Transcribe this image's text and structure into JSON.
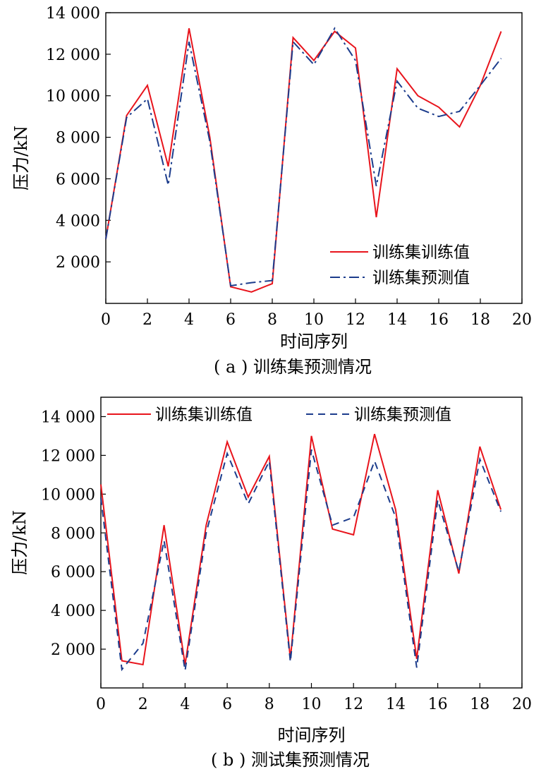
{
  "chart_data": [
    {
      "type": "line",
      "caption": "( a ) 训练集预测情况",
      "xlabel": "时间序列",
      "ylabel": "压力/kN",
      "xlim": [
        0,
        20
      ],
      "ylim": [
        0,
        14000
      ],
      "xticks": [
        "0",
        "2",
        "4",
        "6",
        "8",
        "10",
        "12",
        "14",
        "16",
        "18",
        "20"
      ],
      "yticks": [
        "2 000",
        "4 000",
        "6 000",
        "8 000",
        "10 000",
        "12 000",
        "14 000"
      ],
      "ytick_values": [
        2000,
        4000,
        6000,
        8000,
        10000,
        12000,
        14000
      ],
      "legend_position": "lower-right",
      "x": [
        0,
        1,
        2,
        3,
        4,
        5,
        6,
        7,
        8,
        9,
        10,
        11,
        12,
        13,
        14,
        15,
        16,
        17,
        18,
        19
      ],
      "series": [
        {
          "name": "训练集训练值",
          "color": "#e8141c",
          "style": "solid",
          "values": [
            3100,
            9050,
            10500,
            6600,
            13250,
            8000,
            800,
            550,
            950,
            12800,
            11700,
            13100,
            12300,
            4150,
            11300,
            10000,
            9450,
            8500,
            10500,
            13100
          ]
        },
        {
          "name": "训练集预测值",
          "color": "#1c3c8c",
          "style": "dashdot",
          "values": [
            3100,
            8950,
            9850,
            5700,
            12600,
            7800,
            850,
            1000,
            1100,
            12600,
            11500,
            13250,
            11700,
            5650,
            10700,
            9400,
            9000,
            9250,
            10500,
            11800
          ]
        }
      ]
    },
    {
      "type": "line",
      "caption": "( b ) 测试集预测情况",
      "xlabel": "时间序列",
      "ylabel": "压力/kN",
      "xlim": [
        0,
        20
      ],
      "ylim": [
        0,
        15000
      ],
      "xticks": [
        "0",
        "2",
        "4",
        "6",
        "8",
        "10",
        "12",
        "14",
        "16",
        "18",
        "20"
      ],
      "yticks": [
        "2 000",
        "4 000",
        "6 000",
        "8 000",
        "10 000",
        "12 000",
        "14 000"
      ],
      "ytick_values": [
        2000,
        4000,
        6000,
        8000,
        10000,
        12000,
        14000
      ],
      "legend_position": "top",
      "x": [
        0,
        1,
        2,
        3,
        4,
        5,
        6,
        7,
        8,
        9,
        10,
        11,
        12,
        13,
        14,
        15,
        16,
        17,
        18,
        19
      ],
      "series": [
        {
          "name": "训练集训练值",
          "color": "#e8141c",
          "style": "solid",
          "values": [
            10500,
            1400,
            1200,
            8400,
            1200,
            8400,
            12700,
            9850,
            11950,
            1500,
            13000,
            8200,
            7900,
            13100,
            9200,
            1500,
            10200,
            5900,
            12450,
            9200
          ]
        },
        {
          "name": "训练集预测值",
          "color": "#1c3c8c",
          "style": "dashed",
          "values": [
            9800,
            950,
            2300,
            7600,
            900,
            8000,
            12100,
            9500,
            11700,
            1350,
            12300,
            8400,
            8800,
            11700,
            8800,
            1050,
            9700,
            6000,
            11800,
            9100
          ]
        }
      ]
    }
  ]
}
